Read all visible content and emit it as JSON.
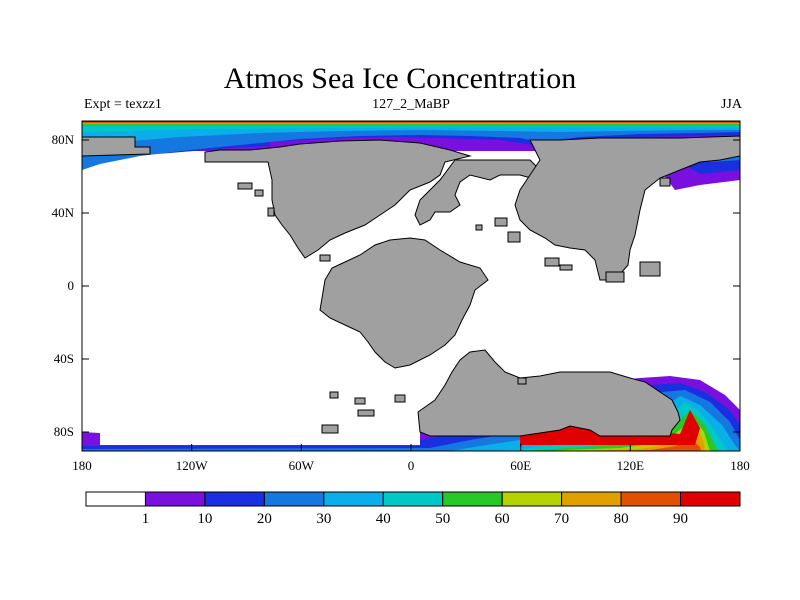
{
  "title": "Atmos Sea Ice Concentration",
  "subtitle_left": "Expt = texzz1",
  "subtitle_center": "127_2_MaBP",
  "subtitle_right": "JJA",
  "map": {
    "projection": "cylindrical equidistant",
    "lon_range": [
      -180,
      180
    ],
    "lat_range": [
      -90,
      90
    ],
    "x_ticks": [
      "180",
      "120W",
      "60W",
      "0",
      "60E",
      "120E",
      "180"
    ],
    "y_ticks": [
      "80N",
      "40N",
      "0",
      "40S",
      "80S"
    ],
    "land_color": "#a0a0a0",
    "ocean_color": "#ffffff"
  },
  "colorbar": {
    "labels": [
      "1",
      "10",
      "20",
      "30",
      "40",
      "50",
      "60",
      "70",
      "80",
      "90"
    ],
    "colors": [
      "#ffffff",
      "#7a10e0",
      "#1a2fe0",
      "#1478e0",
      "#0aaee8",
      "#00c8c8",
      "#28c828",
      "#b4d200",
      "#e0a000",
      "#e05000",
      "#e00000"
    ]
  }
}
